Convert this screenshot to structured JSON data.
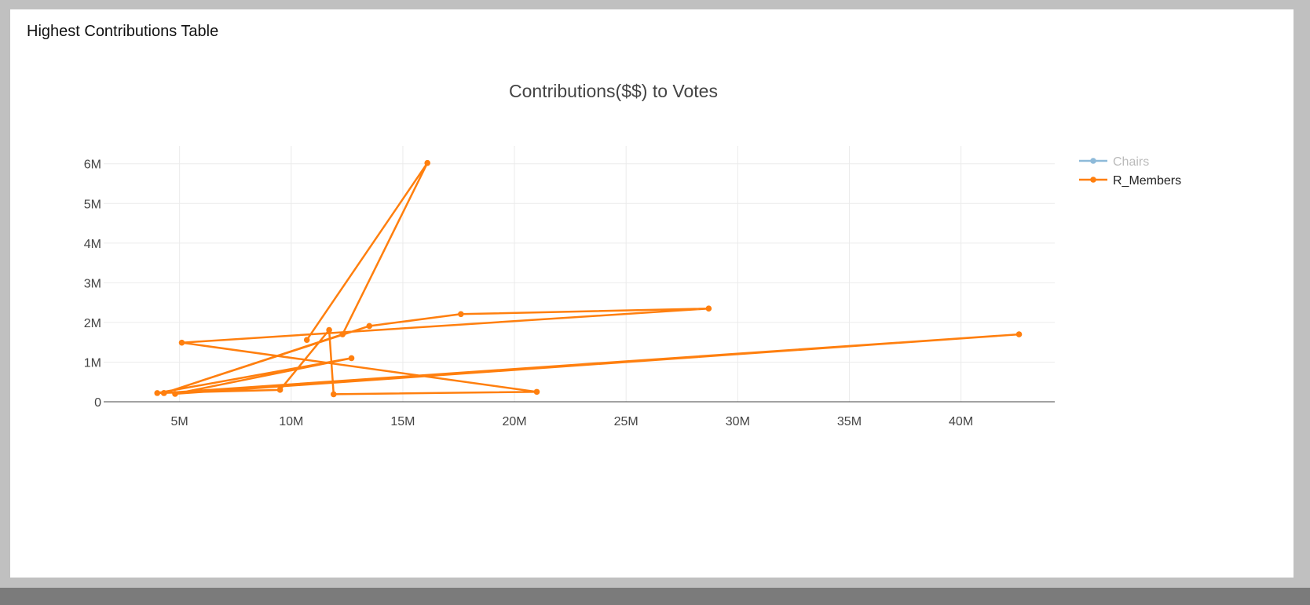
{
  "page": {
    "heading": "Highest Contributions Table"
  },
  "chart_data": {
    "type": "line",
    "title": "Contributions($$) to Votes",
    "xlabel": "",
    "ylabel": "",
    "xlim": [
      1600000,
      44200000
    ],
    "ylim": [
      0,
      6450000
    ],
    "x_ticks": [
      {
        "value": 5000000,
        "label": "5M"
      },
      {
        "value": 10000000,
        "label": "10M"
      },
      {
        "value": 15000000,
        "label": "15M"
      },
      {
        "value": 20000000,
        "label": "20M"
      },
      {
        "value": 25000000,
        "label": "25M"
      },
      {
        "value": 30000000,
        "label": "30M"
      },
      {
        "value": 35000000,
        "label": "35M"
      },
      {
        "value": 40000000,
        "label": "40M"
      }
    ],
    "y_ticks": [
      {
        "value": 0,
        "label": "0"
      },
      {
        "value": 1000000,
        "label": "1M"
      },
      {
        "value": 2000000,
        "label": "2M"
      },
      {
        "value": 3000000,
        "label": "3M"
      },
      {
        "value": 4000000,
        "label": "4M"
      },
      {
        "value": 5000000,
        "label": "5M"
      },
      {
        "value": 6000000,
        "label": "6M"
      }
    ],
    "grid": true,
    "legend_position": "top-right",
    "series": [
      {
        "name": "Chairs",
        "color": "#1f77b4",
        "legend_state": "hidden",
        "x": [],
        "y": []
      },
      {
        "name": "R_Members",
        "color": "#ff7f0e",
        "legend_state": "visible",
        "x": [
          10700000,
          16100000,
          12300000,
          4300000,
          13500000,
          17600000,
          28700000,
          5100000,
          21000000,
          11900000,
          11700000,
          9500000,
          4000000,
          12700000,
          4800000,
          42600000,
          4300000
        ],
        "y": [
          1560000,
          6020000,
          1700000,
          220000,
          1910000,
          2210000,
          2350000,
          1490000,
          250000,
          190000,
          1810000,
          300000,
          220000,
          1100000,
          200000,
          1700000,
          220000
        ]
      }
    ]
  }
}
